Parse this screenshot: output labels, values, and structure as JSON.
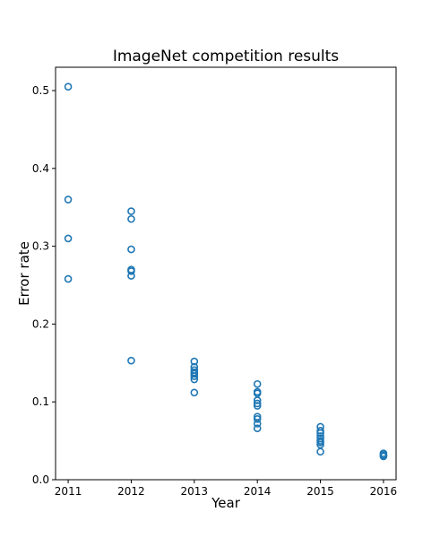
{
  "chart_data": {
    "type": "scatter",
    "title": "ImageNet competition results",
    "xlabel": "Year",
    "ylabel": "Error rate",
    "xlim": [
      2010.8,
      2016.2
    ],
    "ylim": [
      0.0,
      0.53
    ],
    "xticks": [
      2011,
      2012,
      2013,
      2014,
      2015,
      2016
    ],
    "xtick_labels": [
      "2011",
      "2012",
      "2013",
      "2014",
      "2015",
      "2016"
    ],
    "yticks": [
      0.0,
      0.1,
      0.2,
      0.3,
      0.4,
      0.5
    ],
    "ytick_labels": [
      "0.0",
      "0.1",
      "0.2",
      "0.3",
      "0.4",
      "0.5"
    ],
    "grid": false,
    "marker": "open-circle",
    "color": "#1f77b4",
    "series": [
      {
        "x": [
          2011,
          2011,
          2011,
          2011,
          2012,
          2012,
          2012,
          2012,
          2012,
          2012,
          2012,
          2013,
          2013,
          2013,
          2013,
          2013,
          2013,
          2013,
          2013,
          2014,
          2014,
          2014,
          2014,
          2014,
          2014,
          2014,
          2014,
          2014,
          2014,
          2015,
          2015,
          2015,
          2015,
          2015,
          2015,
          2015,
          2015,
          2015,
          2016,
          2016,
          2016,
          2016
        ],
        "y": [
          0.505,
          0.36,
          0.31,
          0.258,
          0.345,
          0.335,
          0.296,
          0.27,
          0.268,
          0.262,
          0.153,
          0.152,
          0.145,
          0.141,
          0.138,
          0.136,
          0.133,
          0.129,
          0.112,
          0.123,
          0.113,
          0.111,
          0.102,
          0.098,
          0.095,
          0.081,
          0.078,
          0.072,
          0.066,
          0.068,
          0.063,
          0.06,
          0.056,
          0.053,
          0.05,
          0.048,
          0.045,
          0.036,
          0.034,
          0.032,
          0.031,
          0.03
        ]
      }
    ]
  }
}
